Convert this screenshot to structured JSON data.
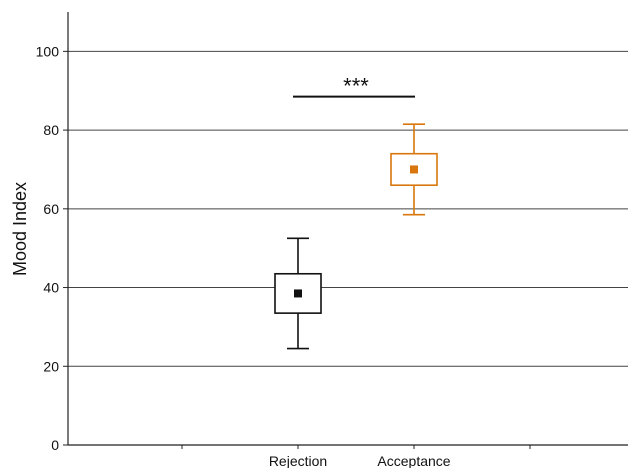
{
  "chart_data": {
    "type": "box",
    "title": "",
    "xlabel": "",
    "ylabel": "Mood Index",
    "ylim": [
      0,
      110
    ],
    "yticks": [
      0,
      20,
      40,
      60,
      80,
      100
    ],
    "grid": true,
    "categories": [
      "Rejection",
      "Acceptance"
    ],
    "boxes": [
      {
        "category": "Rejection",
        "whisker_low": 24.5,
        "q1": 33.5,
        "mean": 38.5,
        "q3": 43.5,
        "whisker_high": 52.5,
        "color": "#111111"
      },
      {
        "category": "Acceptance",
        "whisker_low": 58.5,
        "q1": 66,
        "mean": 70,
        "q3": 74,
        "whisker_high": 81.5,
        "color": "#d9770c"
      }
    ],
    "significance": {
      "from": "Rejection",
      "to": "Acceptance",
      "y": 88.5,
      "label": "***"
    }
  }
}
